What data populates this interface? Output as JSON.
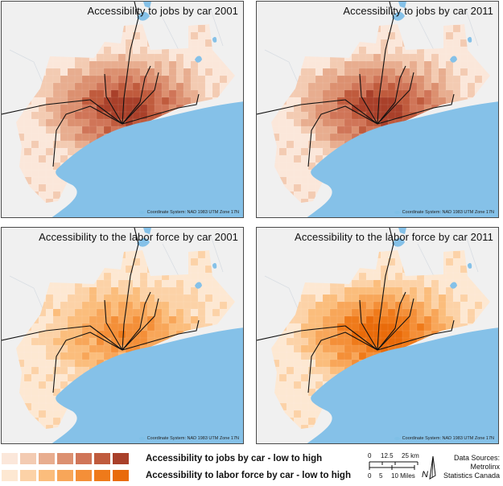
{
  "panels": [
    {
      "title": "Accessibility to jobs by car 2001",
      "coord": "Coordinate System: NAD 1983 UTM Zone 17N",
      "scheme": "jobs",
      "peak": 1.0
    },
    {
      "title": "Accessibility to jobs by car 2011",
      "coord": "Coordinate System: NAD 1983 UTM Zone 17N",
      "scheme": "jobs",
      "peak": 1.0
    },
    {
      "title": "Accessibility to the labor force by car 2001",
      "coord": "Coordinate System: NAD 1983 UTM Zone 17N",
      "scheme": "labor",
      "peak": 0.65
    },
    {
      "title": "Accessibility to the labor force by car 2011",
      "coord": "Coordinate System: NAD 1983 UTM Zone 17N",
      "scheme": "labor",
      "peak": 1.0
    }
  ],
  "legend": {
    "jobs_label": "Accessibility to jobs by car - low to high",
    "labor_label": "Accessibility to labor force by car - low to high",
    "jobs_colors": [
      "#fbe7da",
      "#f3cbb2",
      "#e8ad8f",
      "#dc9070",
      "#d07558",
      "#c05b3d",
      "#a9402a"
    ],
    "labor_colors": [
      "#fde8d2",
      "#fcd2a7",
      "#fbbd7c",
      "#f8a659",
      "#f48f38",
      "#ef7a1a",
      "#e96b0a"
    ]
  },
  "scale": {
    "km_ticks": [
      "0",
      "12.5",
      "25 km"
    ],
    "mile_ticks": [
      "0",
      "5",
      "10 Miles"
    ],
    "north_label": "N"
  },
  "sources": [
    "Data Sources:",
    "Metrolinx",
    "Statistics Canada"
  ],
  "colors": {
    "water": "#85c1e8",
    "land": "#f0f0f0",
    "road": "#111111",
    "border": "#4a4a4a"
  }
}
